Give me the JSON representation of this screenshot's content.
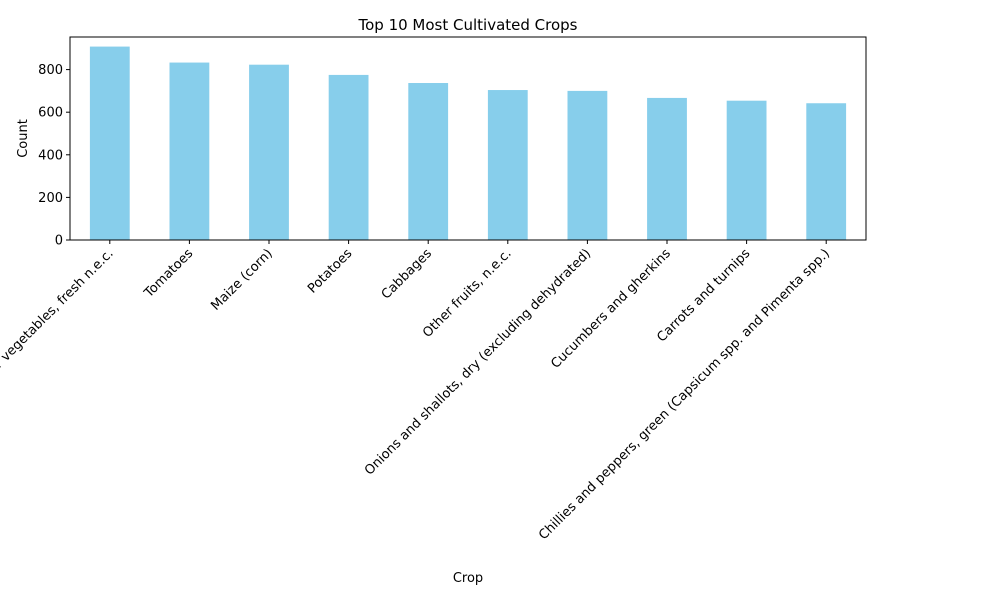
{
  "chart_data": {
    "type": "bar",
    "title": "Top 10 Most Cultivated Crops",
    "xlabel": "Crop",
    "ylabel": "Count",
    "categories": [
      "Other vegetables, fresh n.e.c.",
      "Tomatoes",
      "Maize (corn)",
      "Potatoes",
      "Cabbages",
      "Other fruits, n.e.c.",
      "Onions and shallots, dry (excluding dehydrated)",
      "Cucumbers and gherkins",
      "Carrots and turnips",
      "Chillies and peppers, green (Capsicum spp. and Pimenta spp.)"
    ],
    "values": [
      908,
      833,
      823,
      775,
      737,
      704,
      700,
      667,
      654,
      642
    ],
    "ylim": [
      0,
      953
    ],
    "yticks": [
      0,
      200,
      400,
      600,
      800
    ],
    "grid": false,
    "legend": "none",
    "bar_color": "#87ceeb"
  }
}
